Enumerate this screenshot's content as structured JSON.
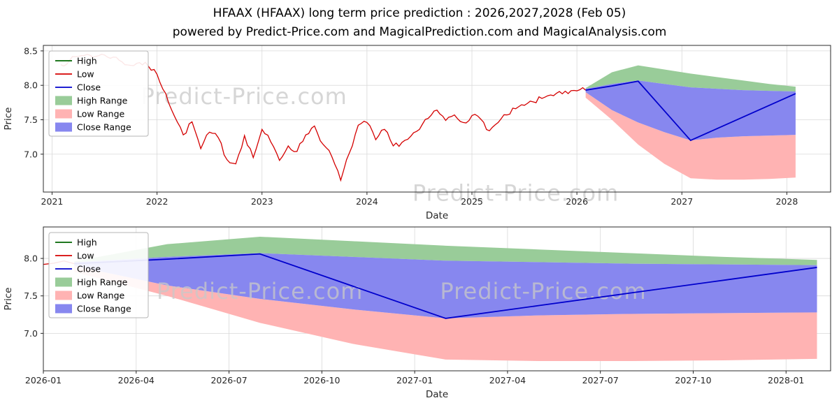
{
  "chart_data": {
    "type": "line",
    "title": "HFAAX (HFAAX) long term price prediction : 2026,2027,2028 (Feb 05)",
    "subtitle": "powered by Predict-Price.com and MagicalPrediction.com and MagicalAnalysis.com",
    "xlabel": "Date",
    "ylabel": "Price",
    "watermark": " Predict-Price.com ",
    "grid": true,
    "legend": [
      {
        "label": "High",
        "swatch": "line",
        "color": "#006400"
      },
      {
        "label": "Low",
        "swatch": "line",
        "color": "#d40000"
      },
      {
        "label": "Close",
        "swatch": "line",
        "color": "#0000cc"
      },
      {
        "label": "High Range",
        "swatch": "patch",
        "color": "#99cc99"
      },
      {
        "label": "Low Range",
        "swatch": "patch",
        "color": "#ffb3b3"
      },
      {
        "label": "Close Range",
        "swatch": "patch",
        "color": "#8787ef"
      }
    ],
    "series": {
      "history_low": {
        "name": "Low",
        "color": "#d40000",
        "x": [
          "2021-02",
          "2021-03",
          "2021-04",
          "2021-05",
          "2021-06",
          "2021-07",
          "2021-08",
          "2021-09",
          "2021-10",
          "2021-11",
          "2021-12",
          "2022-01",
          "2022-02",
          "2022-03",
          "2022-04",
          "2022-05",
          "2022-06",
          "2022-07",
          "2022-08",
          "2022-09",
          "2022-10",
          "2022-11",
          "2022-12",
          "2023-01",
          "2023-02",
          "2023-03",
          "2023-04",
          "2023-05",
          "2023-06",
          "2023-07",
          "2023-08",
          "2023-09",
          "2023-10",
          "2023-11",
          "2023-12",
          "2024-01",
          "2024-02",
          "2024-03",
          "2024-04",
          "2024-05",
          "2024-06",
          "2024-07",
          "2024-08",
          "2024-09",
          "2024-10",
          "2024-11",
          "2024-12",
          "2025-01",
          "2025-02",
          "2025-03",
          "2025-04",
          "2025-05",
          "2025-06",
          "2025-07",
          "2025-08",
          "2025-09",
          "2025-10",
          "2025-11",
          "2025-12",
          "2026-01",
          "2026-02"
        ],
        "values": [
          8.3,
          8.36,
          8.42,
          8.45,
          8.42,
          8.44,
          8.41,
          8.34,
          8.29,
          8.33,
          8.28,
          8.16,
          7.88,
          7.55,
          7.28,
          7.47,
          7.08,
          7.32,
          7.24,
          6.92,
          6.86,
          7.27,
          6.95,
          7.36,
          7.18,
          6.91,
          7.12,
          7.04,
          7.28,
          7.41,
          7.14,
          6.96,
          6.62,
          7.02,
          7.42,
          7.46,
          7.21,
          7.36,
          7.12,
          7.17,
          7.26,
          7.36,
          7.52,
          7.64,
          7.49,
          7.57,
          7.46,
          7.56,
          7.51,
          7.34,
          7.46,
          7.57,
          7.66,
          7.71,
          7.76,
          7.81,
          7.86,
          7.91,
          7.88,
          7.92,
          7.93
        ]
      },
      "prediction": {
        "x": [
          "2026-02",
          "2026-05",
          "2026-08",
          "2026-11",
          "2027-02",
          "2027-05",
          "2027-08",
          "2027-11",
          "2028-02"
        ],
        "close": {
          "name": "Close",
          "color": "#0000cc",
          "values": [
            7.93,
            7.99,
            8.06,
            7.63,
            7.2,
            7.37,
            7.54,
            7.71,
            7.88
          ]
        },
        "high_range_top": [
          7.96,
          8.19,
          8.29,
          8.23,
          8.17,
          8.12,
          8.07,
          8.02,
          7.98
        ],
        "close_range_top": [
          7.95,
          8.02,
          8.07,
          8.02,
          7.97,
          7.95,
          7.93,
          7.92,
          7.91
        ],
        "close_range_bottom": [
          7.9,
          7.64,
          7.46,
          7.32,
          7.2,
          7.24,
          7.26,
          7.27,
          7.28
        ],
        "low_range_bottom": [
          7.82,
          7.5,
          7.14,
          6.86,
          6.65,
          6.63,
          6.63,
          6.64,
          6.66
        ]
      }
    },
    "panels": [
      {
        "id": "full",
        "xlim": [
          2020.917,
          2028.417
        ],
        "ylim": [
          6.45,
          8.58
        ],
        "xticks": [
          {
            "v": 2021,
            "label": "2021"
          },
          {
            "v": 2022,
            "label": "2022"
          },
          {
            "v": 2023,
            "label": "2023"
          },
          {
            "v": 2024,
            "label": "2024"
          },
          {
            "v": 2025,
            "label": "2025"
          },
          {
            "v": 2026,
            "label": "2026"
          },
          {
            "v": 2027,
            "label": "2027"
          },
          {
            "v": 2028,
            "label": "2028"
          }
        ],
        "yticks": [
          7.0,
          7.5,
          8.0,
          8.5
        ],
        "watermarks": [
          {
            "fx": 0.255,
            "fy": 0.4
          },
          {
            "fx": 0.6,
            "fy": 1.06
          }
        ]
      },
      {
        "id": "zoom",
        "xlim": [
          2026.0,
          2028.12
        ],
        "ylim": [
          6.5,
          8.42
        ],
        "xticks": [
          {
            "v": 2026.0,
            "label": "2026-01"
          },
          {
            "v": 2026.25,
            "label": "2026-04"
          },
          {
            "v": 2026.5,
            "label": "2026-07"
          },
          {
            "v": 2026.75,
            "label": "2026-10"
          },
          {
            "v": 2027.0,
            "label": "2027-01"
          },
          {
            "v": 2027.25,
            "label": "2027-04"
          },
          {
            "v": 2027.5,
            "label": "2027-07"
          },
          {
            "v": 2027.75,
            "label": "2027-10"
          },
          {
            "v": 2028.0,
            "label": "2028-01"
          }
        ],
        "yticks": [
          7.0,
          7.5,
          8.0
        ],
        "watermarks": [
          {
            "fx": 0.275,
            "fy": 0.5
          },
          {
            "fx": 0.635,
            "fy": 0.5
          }
        ]
      }
    ]
  },
  "colors": {
    "grid": "#d9d9d9",
    "axis": "#262626",
    "frame": "#2b2b2b",
    "watermark": "#c8c8c8",
    "background": "#ffffff"
  }
}
